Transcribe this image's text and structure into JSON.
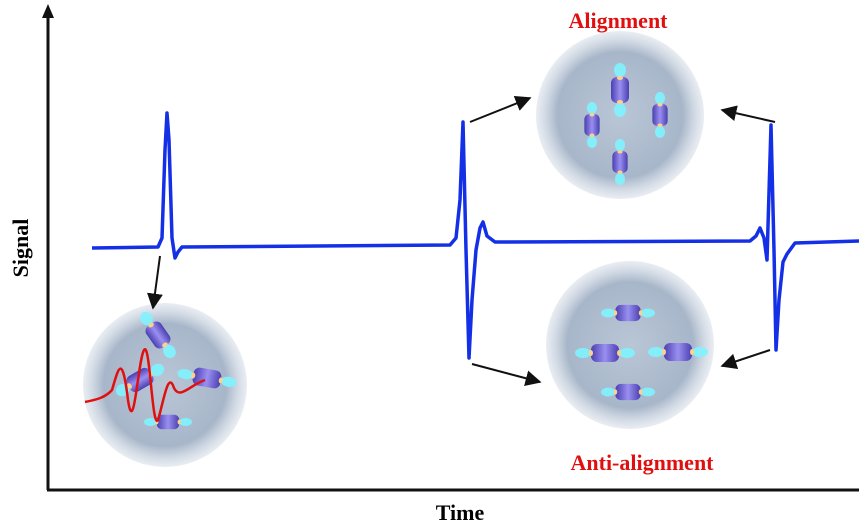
{
  "axes": {
    "y_label": "Signal",
    "x_label": "Time"
  },
  "annotations": {
    "alignment": "Alignment",
    "anti_alignment": "Anti-alignment"
  }
}
